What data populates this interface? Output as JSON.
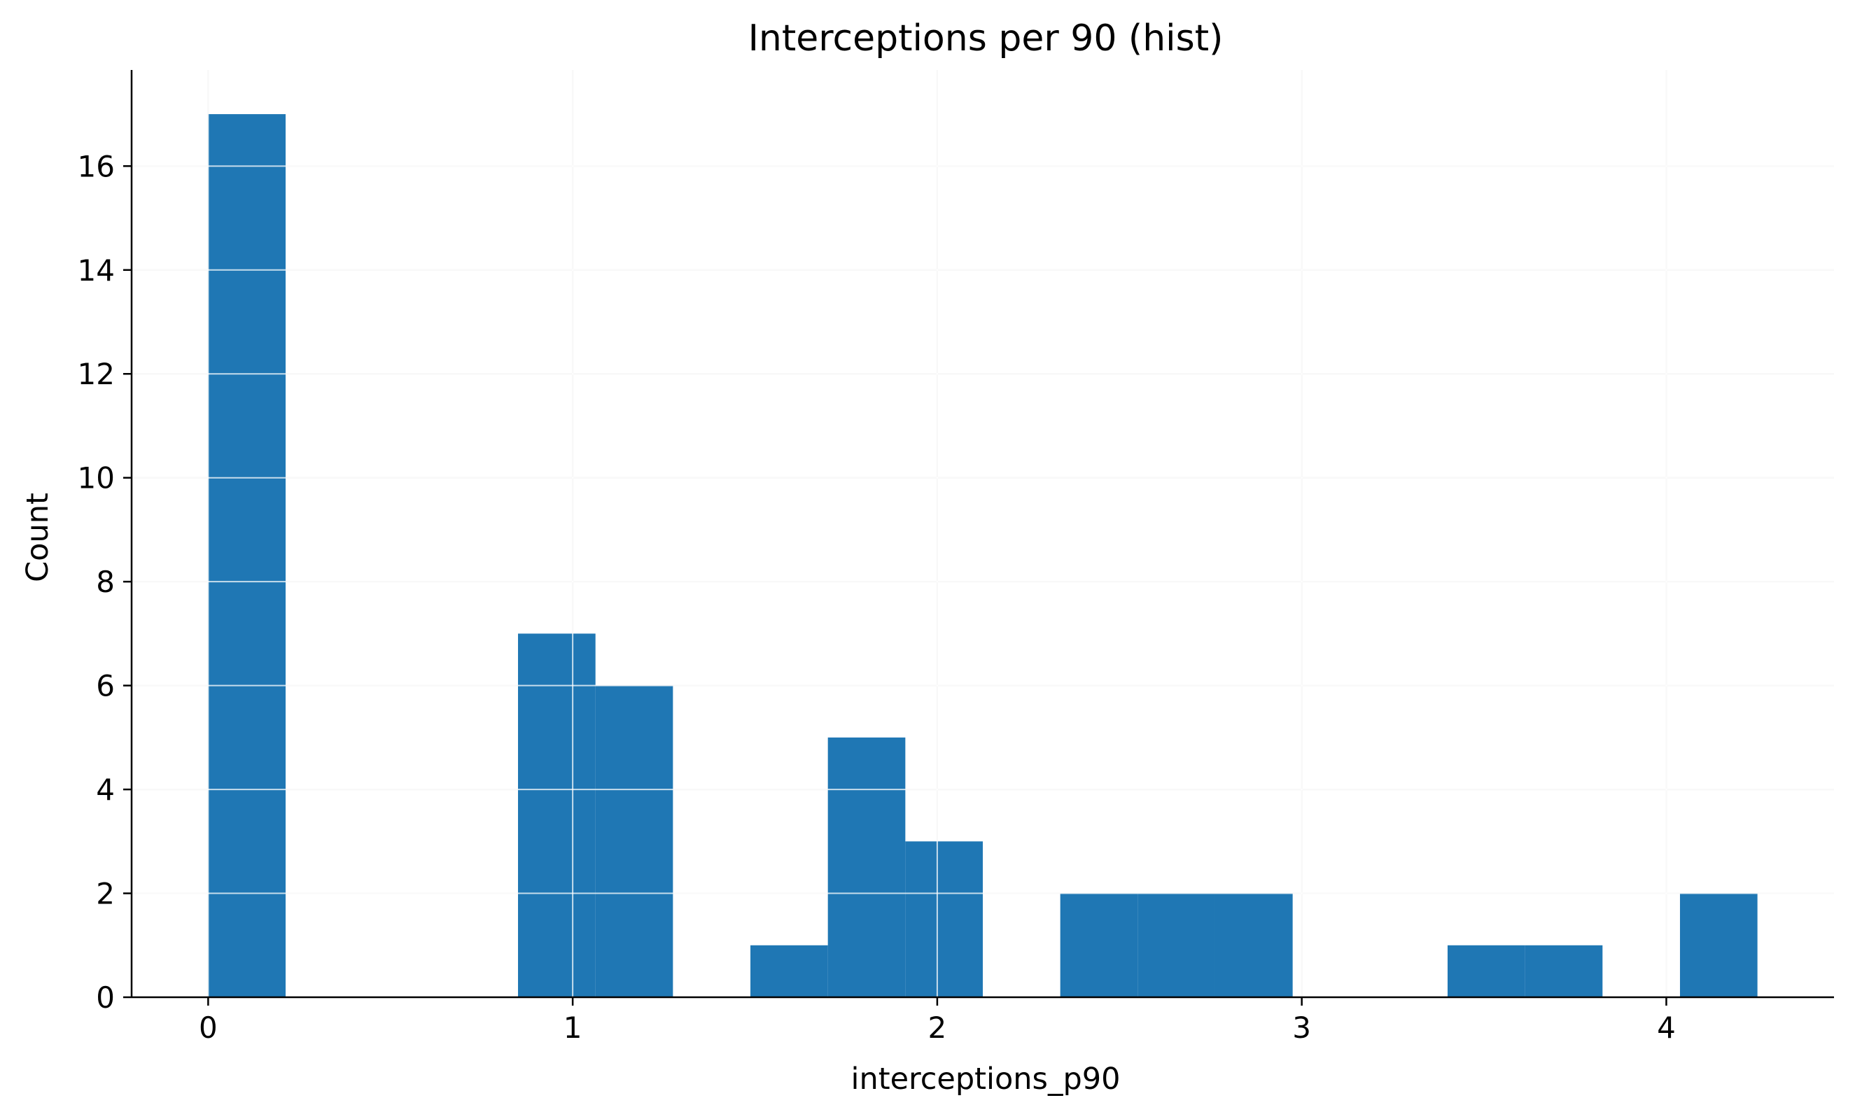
{
  "chart_data": {
    "type": "bar",
    "title": "Interceptions per 90 (hist)",
    "xlabel": "interceptions_p90",
    "ylabel": "Count",
    "xlim": [
      -0.21,
      4.46
    ],
    "ylim": [
      0,
      17.85
    ],
    "x_ticks": [
      0,
      1,
      2,
      3,
      4
    ],
    "y_ticks": [
      0,
      2,
      4,
      6,
      8,
      10,
      12,
      14,
      16
    ],
    "grid": true,
    "bar_color": "#1f77b4",
    "bins": [
      {
        "x0": 0.0,
        "x1": 0.2125,
        "count": 17
      },
      {
        "x0": 0.2125,
        "x1": 0.425,
        "count": 0
      },
      {
        "x0": 0.425,
        "x1": 0.6375,
        "count": 0
      },
      {
        "x0": 0.6375,
        "x1": 0.85,
        "count": 0
      },
      {
        "x0": 0.85,
        "x1": 1.0625,
        "count": 7
      },
      {
        "x0": 1.0625,
        "x1": 1.275,
        "count": 6
      },
      {
        "x0": 1.275,
        "x1": 1.4875,
        "count": 0
      },
      {
        "x0": 1.4875,
        "x1": 1.7,
        "count": 1
      },
      {
        "x0": 1.7,
        "x1": 1.9125,
        "count": 5
      },
      {
        "x0": 1.9125,
        "x1": 2.125,
        "count": 3
      },
      {
        "x0": 2.125,
        "x1": 2.3375,
        "count": 0
      },
      {
        "x0": 2.3375,
        "x1": 2.55,
        "count": 2
      },
      {
        "x0": 2.55,
        "x1": 2.7625,
        "count": 2
      },
      {
        "x0": 2.7625,
        "x1": 2.975,
        "count": 2
      },
      {
        "x0": 2.975,
        "x1": 3.1875,
        "count": 0
      },
      {
        "x0": 3.1875,
        "x1": 3.4,
        "count": 0
      },
      {
        "x0": 3.4,
        "x1": 3.6125,
        "count": 1
      },
      {
        "x0": 3.6125,
        "x1": 3.825,
        "count": 1
      },
      {
        "x0": 3.825,
        "x1": 4.0375,
        "count": 0
      },
      {
        "x0": 4.0375,
        "x1": 4.25,
        "count": 2
      }
    ]
  }
}
